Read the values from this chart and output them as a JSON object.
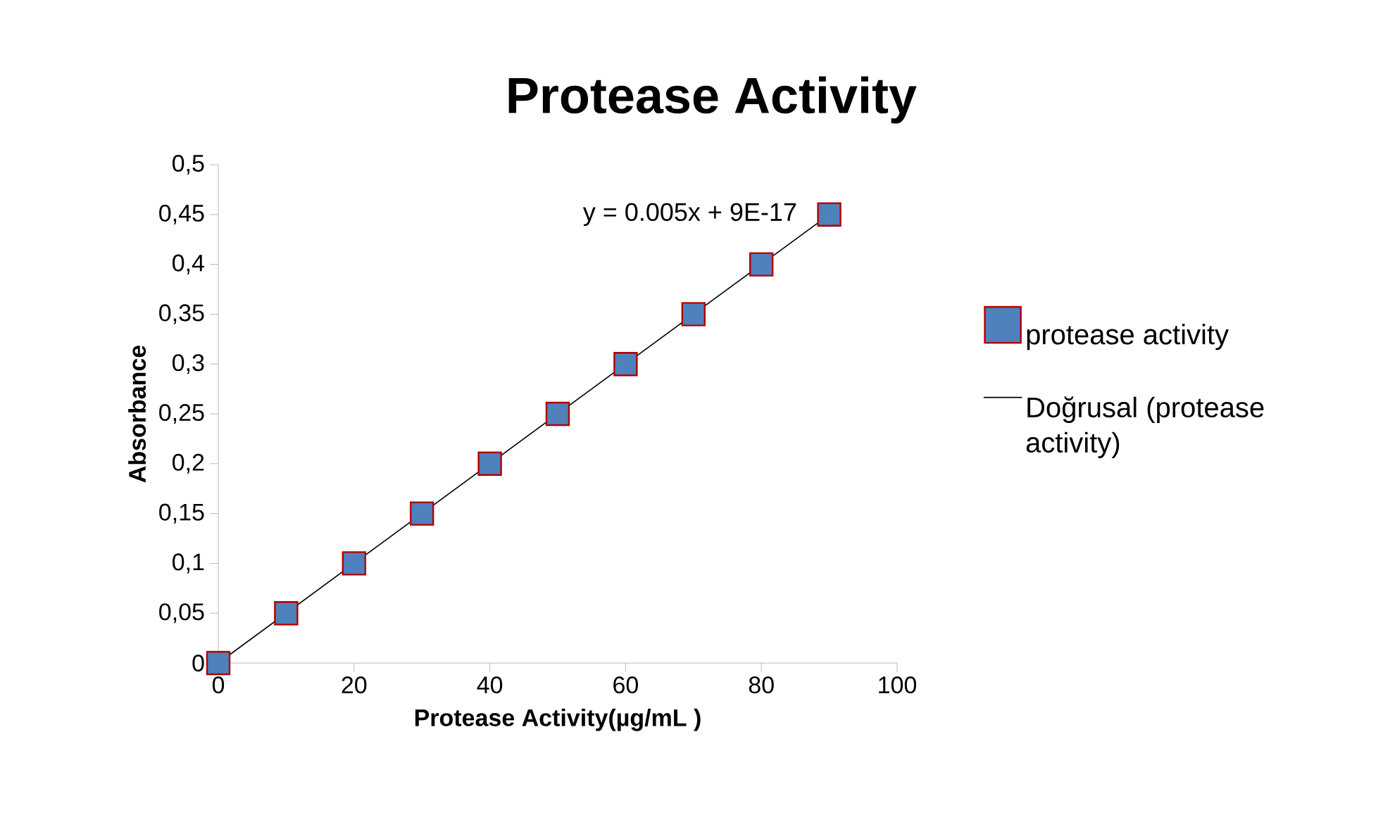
{
  "chart_data": {
    "type": "scatter",
    "title": "Protease Activity",
    "xlabel": "Protease Activity(µg/mL )",
    "ylabel": "Absorbance",
    "x": [
      0,
      10,
      20,
      30,
      40,
      50,
      60,
      70,
      80,
      90
    ],
    "series": [
      {
        "name": "protease activity",
        "marker": "square",
        "color": "#4f81bd",
        "values": [
          0,
          0.05,
          0.1,
          0.15,
          0.2,
          0.25,
          0.3,
          0.35,
          0.4,
          0.45
        ]
      },
      {
        "name": "Doğrusal (protease activity)",
        "type": "line",
        "marker": "none",
        "color": "#000000",
        "x": [
          0,
          90
        ],
        "values": [
          0,
          0.45
        ]
      }
    ],
    "xlim": [
      0,
      100
    ],
    "xticks": [
      0,
      20,
      40,
      60,
      80,
      100
    ],
    "ylim": [
      0,
      0.5
    ],
    "yticks": [
      {
        "value": 0,
        "label": "0"
      },
      {
        "value": 0.05,
        "label": "0,05"
      },
      {
        "value": 0.1,
        "label": "0,1"
      },
      {
        "value": 0.15,
        "label": "0,15"
      },
      {
        "value": 0.2,
        "label": "0,2"
      },
      {
        "value": 0.25,
        "label": "0,25"
      },
      {
        "value": 0.3,
        "label": "0,3"
      },
      {
        "value": 0.35,
        "label": "0,35"
      },
      {
        "value": 0.4,
        "label": "0,4"
      },
      {
        "value": 0.45,
        "label": "0,45"
      },
      {
        "value": 0.5,
        "label": "0,5"
      }
    ],
    "annotations": [
      "y = 0.005x + 9E-17"
    ],
    "grid": false,
    "legend": "right"
  }
}
